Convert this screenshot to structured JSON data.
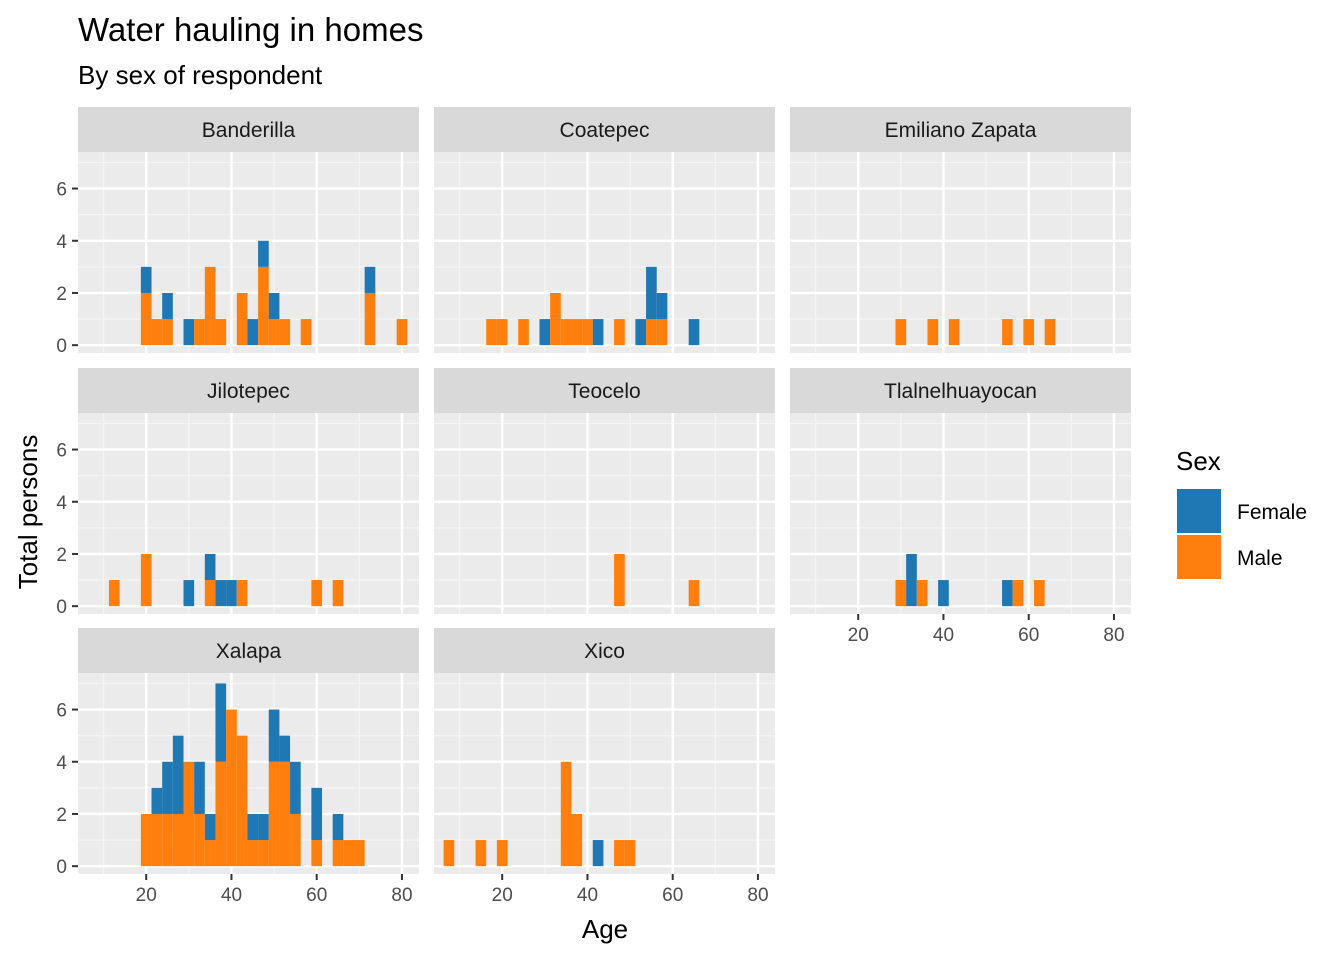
{
  "chart_data": {
    "type": "bar",
    "stacked": true,
    "faceted": true,
    "title": "Water hauling in homes",
    "subtitle": "By sex of respondent",
    "xlabel": "Age",
    "ylabel": "Total persons",
    "xlim": [
      4,
      84
    ],
    "ylim": [
      -0.3,
      7.4
    ],
    "x_ticks": [
      20,
      40,
      60,
      80
    ],
    "y_ticks": [
      0,
      2,
      4,
      6
    ],
    "bin_width": 2.5,
    "grid": true,
    "legend": {
      "title": "Sex",
      "placement": "right",
      "entries": [
        {
          "name": "Female",
          "color": "#1F77B4"
        },
        {
          "name": "Male",
          "color": "#FF7F0E"
        }
      ]
    },
    "series_order": [
      "Male",
      "Female"
    ],
    "panels": [
      {
        "name": "Banderilla",
        "bars": [
          {
            "x": 20,
            "Male": 2,
            "Female": 1
          },
          {
            "x": 22.5,
            "Male": 1,
            "Female": 0
          },
          {
            "x": 25,
            "Male": 1,
            "Female": 1
          },
          {
            "x": 30,
            "Male": 0,
            "Female": 1
          },
          {
            "x": 32.5,
            "Male": 1,
            "Female": 0
          },
          {
            "x": 35,
            "Male": 3,
            "Female": 0
          },
          {
            "x": 37.5,
            "Male": 1,
            "Female": 0
          },
          {
            "x": 42.5,
            "Male": 2,
            "Female": 0
          },
          {
            "x": 45,
            "Male": 0,
            "Female": 1
          },
          {
            "x": 47.5,
            "Male": 3,
            "Female": 1
          },
          {
            "x": 50,
            "Male": 1,
            "Female": 1
          },
          {
            "x": 52.5,
            "Male": 1,
            "Female": 0
          },
          {
            "x": 57.5,
            "Male": 1,
            "Female": 0
          },
          {
            "x": 72.5,
            "Male": 2,
            "Female": 1
          },
          {
            "x": 80,
            "Male": 1,
            "Female": 0
          }
        ]
      },
      {
        "name": "Coatepec",
        "bars": [
          {
            "x": 17.5,
            "Male": 1,
            "Female": 0
          },
          {
            "x": 20,
            "Male": 1,
            "Female": 0
          },
          {
            "x": 25,
            "Male": 1,
            "Female": 0
          },
          {
            "x": 30,
            "Male": 0,
            "Female": 1
          },
          {
            "x": 32.5,
            "Male": 2,
            "Female": 0
          },
          {
            "x": 35,
            "Male": 1,
            "Female": 0
          },
          {
            "x": 37.5,
            "Male": 1,
            "Female": 0
          },
          {
            "x": 40,
            "Male": 1,
            "Female": 0
          },
          {
            "x": 42.5,
            "Male": 0,
            "Female": 1
          },
          {
            "x": 47.5,
            "Male": 1,
            "Female": 0
          },
          {
            "x": 52.5,
            "Male": 0,
            "Female": 1
          },
          {
            "x": 55,
            "Male": 1,
            "Female": 2
          },
          {
            "x": 57.5,
            "Male": 1,
            "Female": 1
          },
          {
            "x": 65,
            "Male": 0,
            "Female": 1
          }
        ]
      },
      {
        "name": "Emiliano Zapata",
        "bars": [
          {
            "x": 30,
            "Male": 1,
            "Female": 0
          },
          {
            "x": 37.5,
            "Male": 1,
            "Female": 0
          },
          {
            "x": 42.5,
            "Male": 1,
            "Female": 0
          },
          {
            "x": 55,
            "Male": 1,
            "Female": 0
          },
          {
            "x": 60,
            "Male": 1,
            "Female": 0
          },
          {
            "x": 65,
            "Male": 1,
            "Female": 0
          }
        ]
      },
      {
        "name": "Jilotepec",
        "bars": [
          {
            "x": 12.5,
            "Male": 1,
            "Female": 0
          },
          {
            "x": 20,
            "Male": 2,
            "Female": 0
          },
          {
            "x": 30,
            "Male": 0,
            "Female": 1
          },
          {
            "x": 35,
            "Male": 1,
            "Female": 1
          },
          {
            "x": 37.5,
            "Male": 0,
            "Female": 1
          },
          {
            "x": 40,
            "Male": 0,
            "Female": 1
          },
          {
            "x": 42.5,
            "Male": 1,
            "Female": 0
          },
          {
            "x": 60,
            "Male": 1,
            "Female": 0
          },
          {
            "x": 65,
            "Male": 1,
            "Female": 0
          }
        ]
      },
      {
        "name": "Teocelo",
        "bars": [
          {
            "x": 47.5,
            "Male": 2,
            "Female": 0
          },
          {
            "x": 65,
            "Male": 1,
            "Female": 0
          }
        ]
      },
      {
        "name": "Tlalnelhuayocan",
        "bars": [
          {
            "x": 30,
            "Male": 1,
            "Female": 0
          },
          {
            "x": 32.5,
            "Male": 0,
            "Female": 2
          },
          {
            "x": 35,
            "Male": 1,
            "Female": 0
          },
          {
            "x": 40,
            "Male": 0,
            "Female": 1
          },
          {
            "x": 55,
            "Male": 0,
            "Female": 1
          },
          {
            "x": 57.5,
            "Male": 1,
            "Female": 0
          },
          {
            "x": 62.5,
            "Male": 1,
            "Female": 0
          }
        ]
      },
      {
        "name": "Xalapa",
        "bars": [
          {
            "x": 20,
            "Male": 2,
            "Female": 0
          },
          {
            "x": 22.5,
            "Male": 2,
            "Female": 1
          },
          {
            "x": 25,
            "Male": 2,
            "Female": 2
          },
          {
            "x": 27.5,
            "Male": 2,
            "Female": 3
          },
          {
            "x": 30,
            "Male": 4,
            "Female": 0
          },
          {
            "x": 32.5,
            "Male": 2,
            "Female": 2
          },
          {
            "x": 35,
            "Male": 1,
            "Female": 1
          },
          {
            "x": 37.5,
            "Male": 4,
            "Female": 3
          },
          {
            "x": 40,
            "Male": 6,
            "Female": 0
          },
          {
            "x": 42.5,
            "Male": 5,
            "Female": 0
          },
          {
            "x": 45,
            "Male": 1,
            "Female": 1
          },
          {
            "x": 47.5,
            "Male": 1,
            "Female": 1
          },
          {
            "x": 50,
            "Male": 4,
            "Female": 2
          },
          {
            "x": 52.5,
            "Male": 4,
            "Female": 1
          },
          {
            "x": 55,
            "Male": 2,
            "Female": 2
          },
          {
            "x": 60,
            "Male": 1,
            "Female": 2
          },
          {
            "x": 65,
            "Male": 1,
            "Female": 1
          },
          {
            "x": 67.5,
            "Male": 1,
            "Female": 0
          },
          {
            "x": 70,
            "Male": 1,
            "Female": 0
          }
        ]
      },
      {
        "name": "Xico",
        "bars": [
          {
            "x": 7.5,
            "Male": 1,
            "Female": 0
          },
          {
            "x": 15,
            "Male": 1,
            "Female": 0
          },
          {
            "x": 20,
            "Male": 1,
            "Female": 0
          },
          {
            "x": 35,
            "Male": 4,
            "Female": 0
          },
          {
            "x": 37.5,
            "Male": 2,
            "Female": 0
          },
          {
            "x": 42.5,
            "Male": 0,
            "Female": 1
          },
          {
            "x": 47.5,
            "Male": 1,
            "Female": 0
          },
          {
            "x": 50,
            "Male": 1,
            "Female": 0
          }
        ]
      }
    ]
  }
}
